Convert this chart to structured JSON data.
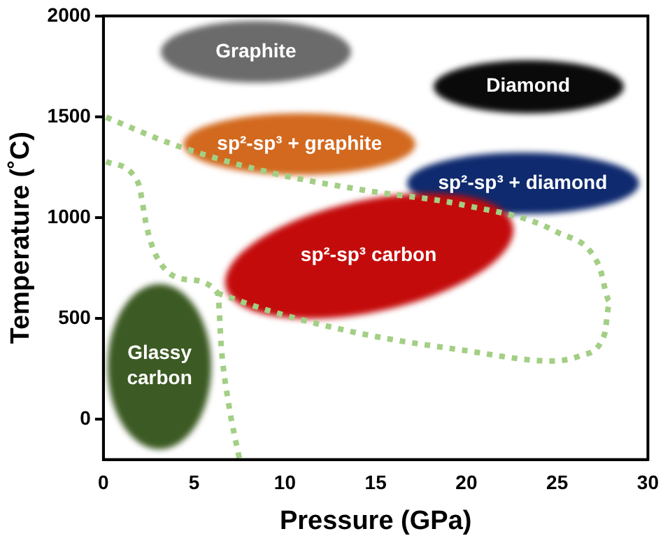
{
  "chart_data": {
    "type": "line",
    "xlabel": "Pressure (GPa)",
    "ylabel": "Temperature (˚C)",
    "xlim": [
      0,
      30
    ],
    "xticks": [
      0,
      5,
      10,
      15,
      20,
      25,
      30
    ],
    "ylim": [
      -200,
      2000
    ],
    "yticks": [
      0,
      500,
      1000,
      1500,
      2000
    ],
    "grid": false,
    "legend": false,
    "marker": "none",
    "line_style": "dotted",
    "series": [
      {
        "color": "#a3cf85",
        "x": [
          0.15,
          3.9,
          9.2,
          14.5,
          19.7,
          25,
          27.3,
          27.9,
          27.6,
          26.3,
          24.7,
          19.7,
          14.5,
          9.2,
          6.3
        ],
        "values": [
          1498,
          1361,
          1223,
          1134,
          1065,
          928,
          763,
          584,
          419,
          316,
          289,
          344,
          419,
          536,
          625
        ]
      },
      {
        "color": "#a3cf85",
        "x": [
          0.15,
          1.9,
          2.4,
          2.9,
          4.5,
          6.3,
          6.5,
          6.9,
          7.5
        ],
        "values": [
          1278,
          1175,
          948,
          811,
          694,
          625,
          351,
          76,
          -199
        ]
      }
    ],
    "annotations": [
      "Graphite",
      "Diamond",
      "sp²-sp³ + graphite",
      "sp²-sp³ + diamond",
      "sp²-sp³ carbon",
      "Glassy\ncarbon"
    ]
  }
}
